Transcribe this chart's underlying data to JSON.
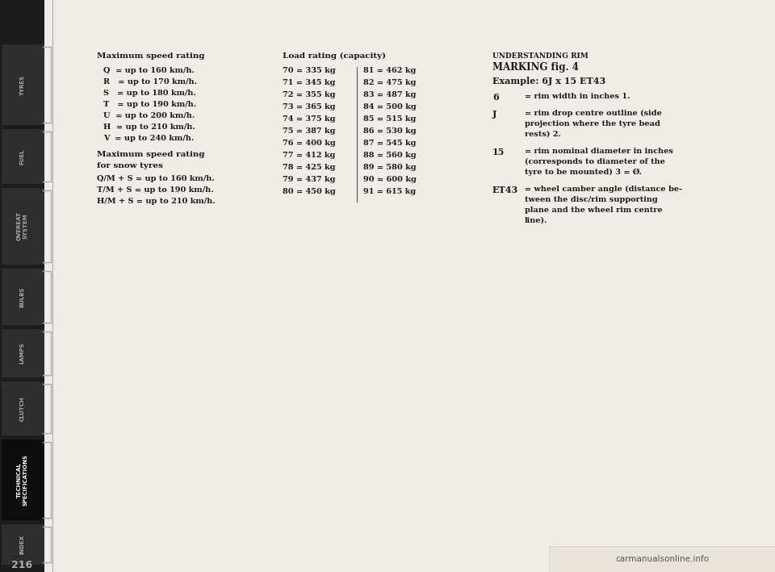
{
  "bg_color": "#ffffff",
  "page_bg": "#f0ede8",
  "sidebar_bg": "#1a1a1a",
  "text_color": "#1a1a1a",
  "tab_labels": [
    "TYRES",
    "FUEL",
    "OVEREAT",
    "BULBS",
    "LAMPS",
    "CLUTCH",
    "TECHNICAL\nSPECIFICATIONS",
    "INDEX"
  ],
  "active_tab": "TECHNICAL\nSPECIFICATIONS",
  "page_number": "216",
  "col1_title": "Maximum speed rating",
  "col1_items": [
    "Q  = up to 160 km/h.",
    "R   = up to 170 km/h.",
    "S   = up to 180 km/h.",
    "T   = up to 190 km/h.",
    "U  = up to 200 km/h.",
    "H  = up to 210 km/h.",
    "V  = up to 240 km/h."
  ],
  "col1_subtitle1": "Maximum speed rating",
  "col1_subtitle2": "for snow tyres",
  "col1_snow": [
    "Q/M + S = up to 160 km/h.",
    "T/M + S = up to 190 km/h.",
    "H/M + S = up to 210 km/h."
  ],
  "col2_title": "Load rating (capacity)",
  "col2_left": [
    "70 = 335 kg",
    "71 = 345 kg",
    "72 = 355 kg",
    "73 = 365 kg",
    "74 = 375 kg",
    "75 = 387 kg",
    "76 = 400 kg",
    "77 = 412 kg",
    "78 = 425 kg",
    "79 = 437 kg",
    "80 = 450 kg"
  ],
  "col2_right": [
    "81 = 462 kg",
    "82 = 475 kg",
    "83 = 487 kg",
    "84 = 500 kg",
    "85 = 515 kg",
    "86 = 530 kg",
    "87 = 545 kg",
    "88 = 560 kg",
    "89 = 580 kg",
    "90 = 600 kg",
    "91 = 615 kg"
  ],
  "col3_line1": "UNDERSTANDING RIM",
  "col3_line2": "MARKING fig. 4",
  "col3_example": "Example: 6J x 15 ET43",
  "col3_items": [
    {
      "key": "6",
      "value": "= rim width in inches 1."
    },
    {
      "key": "J",
      "value": "= rim drop centre outline (side\nprojection where the tyre bead\nrests) 2."
    },
    {
      "key": "15",
      "value": "= rim nominal diameter in inches\n(corresponds to diameter of the\ntyre to be mounted) 3 = Ø."
    },
    {
      "key": "ET43",
      "value": "= wheel camber angle (distance be-\ntween the disc/rim supporting\nplane and the wheel rim centre\nline)."
    }
  ],
  "watermark": "carmanualsonline.info"
}
